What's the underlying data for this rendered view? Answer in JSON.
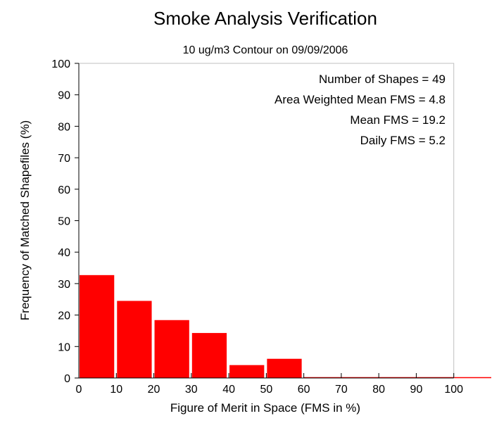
{
  "chart_data": {
    "type": "bar",
    "title": "Smoke Analysis Verification",
    "subtitle": "10 ug/m3 Contour on 09/09/2006",
    "xlabel": "Figure of Merit in Space (FMS in %)",
    "ylabel": "Frequency of Matched Shapefiles (%)",
    "xlim": [
      0,
      110
    ],
    "ylim": [
      0,
      100
    ],
    "xticks": [
      0,
      10,
      20,
      30,
      40,
      50,
      60,
      70,
      80,
      90,
      100
    ],
    "yticks": [
      0,
      10,
      20,
      30,
      40,
      50,
      60,
      70,
      80,
      90,
      100
    ],
    "bins": [
      {
        "from": 0,
        "to": 10,
        "value": 32.7
      },
      {
        "from": 10,
        "to": 20,
        "value": 24.5
      },
      {
        "from": 20,
        "to": 30,
        "value": 18.4
      },
      {
        "from": 30,
        "to": 40,
        "value": 14.3
      },
      {
        "from": 40,
        "to": 50,
        "value": 4.1
      },
      {
        "from": 50,
        "to": 60,
        "value": 6.1
      },
      {
        "from": 60,
        "to": 70,
        "value": 0
      },
      {
        "from": 70,
        "to": 80,
        "value": 0
      },
      {
        "from": 80,
        "to": 90,
        "value": 0
      },
      {
        "from": 90,
        "to": 100,
        "value": 0
      },
      {
        "from": 100,
        "to": 110,
        "value": 0
      }
    ],
    "annotations": [
      "Number of Shapes = 49",
      "Area Weighted Mean FMS = 4.8",
      "Mean FMS = 19.2",
      "Daily FMS = 5.2"
    ],
    "bar_color": "#ff0000",
    "grid": false,
    "legend": "none"
  }
}
